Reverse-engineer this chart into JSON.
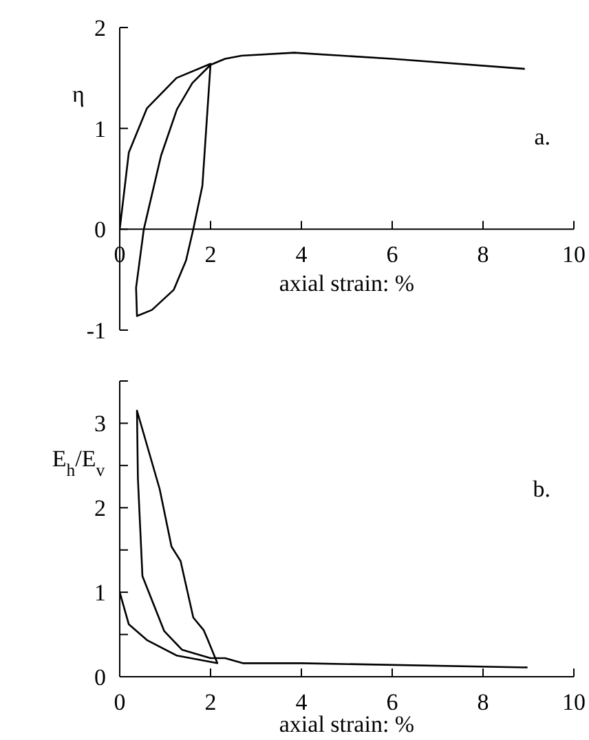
{
  "chart_data": [
    {
      "type": "line",
      "xlabel": "axial strain: %",
      "ylabel": "η",
      "annotations": [
        "a."
      ],
      "xlim": [
        0,
        10
      ],
      "xticks": [
        0,
        2,
        4,
        6,
        8,
        10
      ],
      "ylim": [
        -1,
        2
      ],
      "yticks": [
        -1,
        0,
        1,
        2
      ],
      "series": [
        {
          "color": "#000000",
          "x": [
            0,
            0.2,
            0.6,
            1.25,
            2,
            1.82,
            1.62,
            1.46,
            1.19,
            0.71,
            0.38,
            0.36,
            0.53,
            0.91,
            1.26,
            1.6,
            2,
            2.32,
            2.68,
            3.84,
            6,
            8.92
          ],
          "values": [
            0,
            0.76,
            1.2,
            1.5,
            1.64,
            0.43,
            0,
            -0.31,
            -0.6,
            -0.8,
            -0.86,
            -0.58,
            0,
            0.73,
            1.19,
            1.45,
            1.63,
            1.69,
            1.72,
            1.75,
            1.69,
            1.59
          ]
        }
      ]
    },
    {
      "type": "line",
      "xlabel": "axial strain: %",
      "ylabel": "E$_{h}$/E$_{v}$",
      "annotations": [
        "b."
      ],
      "xlim": [
        0,
        10
      ],
      "xticks": [
        0,
        2,
        4,
        6,
        8,
        10
      ],
      "ylim": [
        0,
        3.5
      ],
      "yticks": [
        0,
        {
          "value": 0.5,
          "label": null
        },
        1,
        {
          "value": 1.5,
          "label": null
        },
        2,
        {
          "value": 2.5,
          "label": null
        },
        3,
        {
          "value": 3.5,
          "label": null
        }
      ],
      "series": [
        {
          "color": "#000000",
          "x": [
            0,
            0.2,
            0.61,
            1.26,
            2.15,
            1.93,
            1.85,
            1.62,
            1.34,
            1.14,
            0.88,
            0.38,
            0.4,
            0.5,
            0.98,
            1.37,
            2,
            2.32,
            2.71,
            4,
            8.98
          ],
          "values": [
            1.0,
            0.62,
            0.43,
            0.25,
            0.16,
            0.45,
            0.55,
            0.7,
            1.37,
            1.54,
            2.22,
            3.15,
            2.35,
            1.19,
            0.54,
            0.32,
            0.22,
            0.22,
            0.16,
            0.16,
            0.11
          ]
        }
      ]
    }
  ]
}
